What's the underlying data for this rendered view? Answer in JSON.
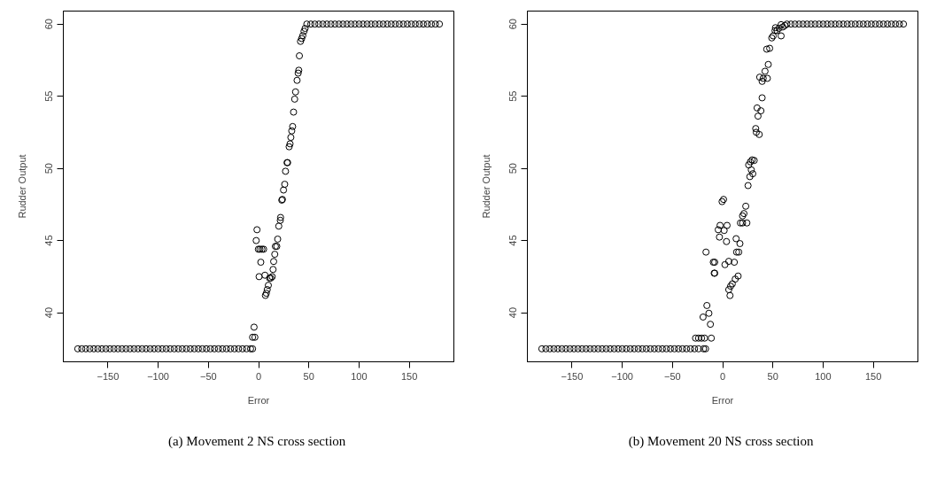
{
  "chart_data": [
    {
      "type": "scatter",
      "xlabel": "Error",
      "ylabel": "Rudder Output",
      "xlim": [
        -194.4,
        194.4
      ],
      "ylim": [
        36.6,
        60.9
      ],
      "xticks": [
        -150,
        -100,
        -50,
        0,
        50,
        100,
        150
      ],
      "yticks": [
        40,
        45,
        50,
        55,
        60
      ],
      "grid": false,
      "marker": "circle",
      "annotations": [
        "(a)  Movement 2 NS cross section"
      ],
      "series": [
        {
          "color": "#000000",
          "x": [
            -180,
            -176,
            -172,
            -168,
            -164,
            -160,
            -156,
            -152,
            -148,
            -144,
            -140,
            -136,
            -132,
            -128,
            -124,
            -120,
            -116,
            -112,
            -108,
            -104,
            -100,
            -96,
            -92,
            -88,
            -84,
            -80,
            -76,
            -72,
            -68,
            -64,
            -60,
            -56,
            -52,
            -48,
            -44,
            -40,
            -36,
            -32,
            -28,
            -24,
            -20,
            -16,
            -12,
            -8,
            -6
          ],
          "values": [
            37.5,
            37.5,
            37.5,
            37.5,
            37.5,
            37.5,
            37.5,
            37.5,
            37.5,
            37.5,
            37.5,
            37.5,
            37.5,
            37.5,
            37.5,
            37.5,
            37.5,
            37.5,
            37.5,
            37.5,
            37.5,
            37.5,
            37.5,
            37.5,
            37.5,
            37.5,
            37.5,
            37.5,
            37.5,
            37.5,
            37.5,
            37.5,
            37.5,
            37.5,
            37.5,
            37.5,
            37.5,
            37.5,
            37.5,
            37.5,
            37.5,
            37.5,
            37.5,
            37.5,
            37.5
          ]
        },
        {
          "color": "#000000",
          "x": [
            -4.5,
            -6,
            -3.7,
            -1.6,
            -2.4,
            -0.2,
            1.3,
            3.3,
            5.0,
            2.2,
            0.5,
            6.3,
            10.9,
            12.1,
            13.5,
            14.4,
            15.0,
            16.1,
            16.7,
            18.1,
            19.0,
            9.7,
            8.6,
            7.7,
            6.8,
            20.1,
            21.6,
            21.9,
            23.1,
            23.7,
            24.8,
            26.0,
            26.8,
            28.3,
            28.9,
            30.4,
            31.3,
            32.1,
            33.0,
            33.9,
            34.8,
            35.9,
            36.8,
            38.3,
            39.4,
            40.0,
            40.6,
            41.7,
            42.9,
            44.0,
            45.2,
            46.3
          ],
          "values": [
            39.0,
            38.3,
            38.3,
            45.75,
            45.0,
            44.4,
            44.4,
            44.4,
            44.4,
            43.5,
            42.5,
            42.6,
            42.4,
            42.4,
            42.5,
            43.0,
            43.55,
            44.05,
            44.6,
            44.6,
            45.1,
            41.9,
            41.6,
            41.35,
            41.2,
            46.0,
            46.4,
            46.6,
            47.8,
            47.85,
            48.5,
            48.9,
            49.8,
            50.4,
            50.4,
            51.5,
            51.7,
            52.15,
            52.6,
            52.9,
            53.9,
            54.8,
            55.3,
            56.1,
            56.6,
            56.8,
            57.8,
            58.8,
            59.0,
            59.2,
            59.5,
            59.7
          ]
        },
        {
          "color": "#000000",
          "x": [
            48,
            52,
            56,
            60,
            64,
            68,
            72,
            76,
            80,
            84,
            88,
            92,
            96,
            100,
            104,
            108,
            112,
            116,
            120,
            124,
            128,
            132,
            136,
            140,
            144,
            148,
            152,
            156,
            160,
            164,
            168,
            172,
            176,
            180
          ],
          "values": [
            60,
            60,
            60,
            60,
            60,
            60,
            60,
            60,
            60,
            60,
            60,
            60,
            60,
            60,
            60,
            60,
            60,
            60,
            60,
            60,
            60,
            60,
            60,
            60,
            60,
            60,
            60,
            60,
            60,
            60,
            60,
            60,
            60,
            60
          ]
        }
      ]
    },
    {
      "type": "scatter",
      "xlabel": "Error",
      "ylabel": "Rudder Output",
      "xlim": [
        -194.4,
        194.4
      ],
      "ylim": [
        36.6,
        60.9
      ],
      "xticks": [
        -150,
        -100,
        -50,
        0,
        50,
        100,
        150
      ],
      "yticks": [
        40,
        45,
        50,
        55,
        60
      ],
      "grid": false,
      "marker": "circle",
      "annotations": [
        "(b)  Movement 20 NS cross section"
      ],
      "series": [
        {
          "color": "#000000",
          "x": [
            -180,
            -176,
            -172,
            -168,
            -164,
            -160,
            -156,
            -152,
            -148,
            -144,
            -140,
            -136,
            -132,
            -128,
            -124,
            -120,
            -116,
            -112,
            -108,
            -104,
            -100,
            -96,
            -92,
            -88,
            -84,
            -80,
            -76,
            -72,
            -68,
            -64,
            -60,
            -56,
            -52,
            -48,
            -44,
            -40,
            -36,
            -32,
            -28,
            -24,
            -19,
            -17
          ],
          "values": [
            37.5,
            37.5,
            37.5,
            37.5,
            37.5,
            37.5,
            37.5,
            37.5,
            37.5,
            37.5,
            37.5,
            37.5,
            37.5,
            37.5,
            37.5,
            37.5,
            37.5,
            37.5,
            37.5,
            37.5,
            37.5,
            37.5,
            37.5,
            37.5,
            37.5,
            37.5,
            37.5,
            37.5,
            37.5,
            37.5,
            37.5,
            37.5,
            37.5,
            37.5,
            37.5,
            37.5,
            37.5,
            37.5,
            37.5,
            37.5,
            37.5,
            37.5
          ]
        },
        {
          "color": "#000000",
          "x": [
            -27,
            -24,
            -21,
            -18,
            -11.3,
            -15.7,
            -13.7,
            -19.5,
            -12.2,
            -16.6,
            -9.3,
            -7.9,
            -8.4,
            -7.9,
            -0.6,
            0.9,
            -2.6,
            4.4,
            -4.4,
            1.5,
            -3.2,
            3.8,
            2.3,
            6.1,
            11.6,
            13.4,
            17.2,
            13.9,
            16.0,
            15.4,
            12.5,
            9.6,
            7.9,
            6.1,
            7.3,
            23.0,
            21.2,
            19.8,
            17.7,
            19.8,
            24.1,
            25.3,
            27.1,
            30.0,
            28.5,
            25.9,
            27.6,
            29.4,
            31.4,
            32.9,
            33.5,
            36.4,
            39.3,
            34.3,
            38.1,
            35.2,
            36.9,
            40.4,
            39.3,
            44.5,
            42.2,
            45.4,
            43.9,
            46.8,
            48.9,
            50.3,
            52.1,
            52.6,
            58.2,
            54.1,
            56.1,
            59.9,
            62.0,
            58.2
          ],
          "values": [
            38.24,
            38.24,
            38.24,
            38.24,
            38.24,
            40.5,
            39.96,
            39.7,
            39.2,
            44.2,
            43.5,
            43.5,
            42.74,
            42.74,
            47.7,
            47.85,
            46.05,
            46.05,
            45.75,
            45.7,
            45.24,
            44.93,
            43.33,
            43.56,
            43.5,
            45.13,
            44.79,
            44.2,
            44.2,
            42.54,
            42.33,
            42.0,
            41.84,
            41.6,
            41.19,
            47.38,
            46.87,
            46.71,
            46.22,
            46.22,
            46.22,
            48.81,
            49.43,
            49.63,
            49.9,
            50.24,
            50.45,
            50.59,
            50.55,
            52.76,
            52.5,
            52.35,
            54.89,
            54.19,
            53.99,
            53.62,
            56.32,
            56.24,
            56.03,
            56.24,
            56.73,
            57.2,
            58.26,
            58.32,
            59.04,
            59.18,
            59.55,
            59.75,
            59.18,
            59.55,
            59.71,
            59.8,
            59.9,
            59.96
          ]
        },
        {
          "color": "#000000",
          "x": [
            64,
            68,
            72,
            76,
            80,
            84,
            88,
            92,
            96,
            100,
            104,
            108,
            112,
            116,
            120,
            124,
            128,
            132,
            136,
            140,
            144,
            148,
            152,
            156,
            160,
            164,
            168,
            172,
            176,
            180
          ],
          "values": [
            60,
            60,
            60,
            60,
            60,
            60,
            60,
            60,
            60,
            60,
            60,
            60,
            60,
            60,
            60,
            60,
            60,
            60,
            60,
            60,
            60,
            60,
            60,
            60,
            60,
            60,
            60,
            60,
            60,
            60
          ]
        }
      ]
    }
  ]
}
